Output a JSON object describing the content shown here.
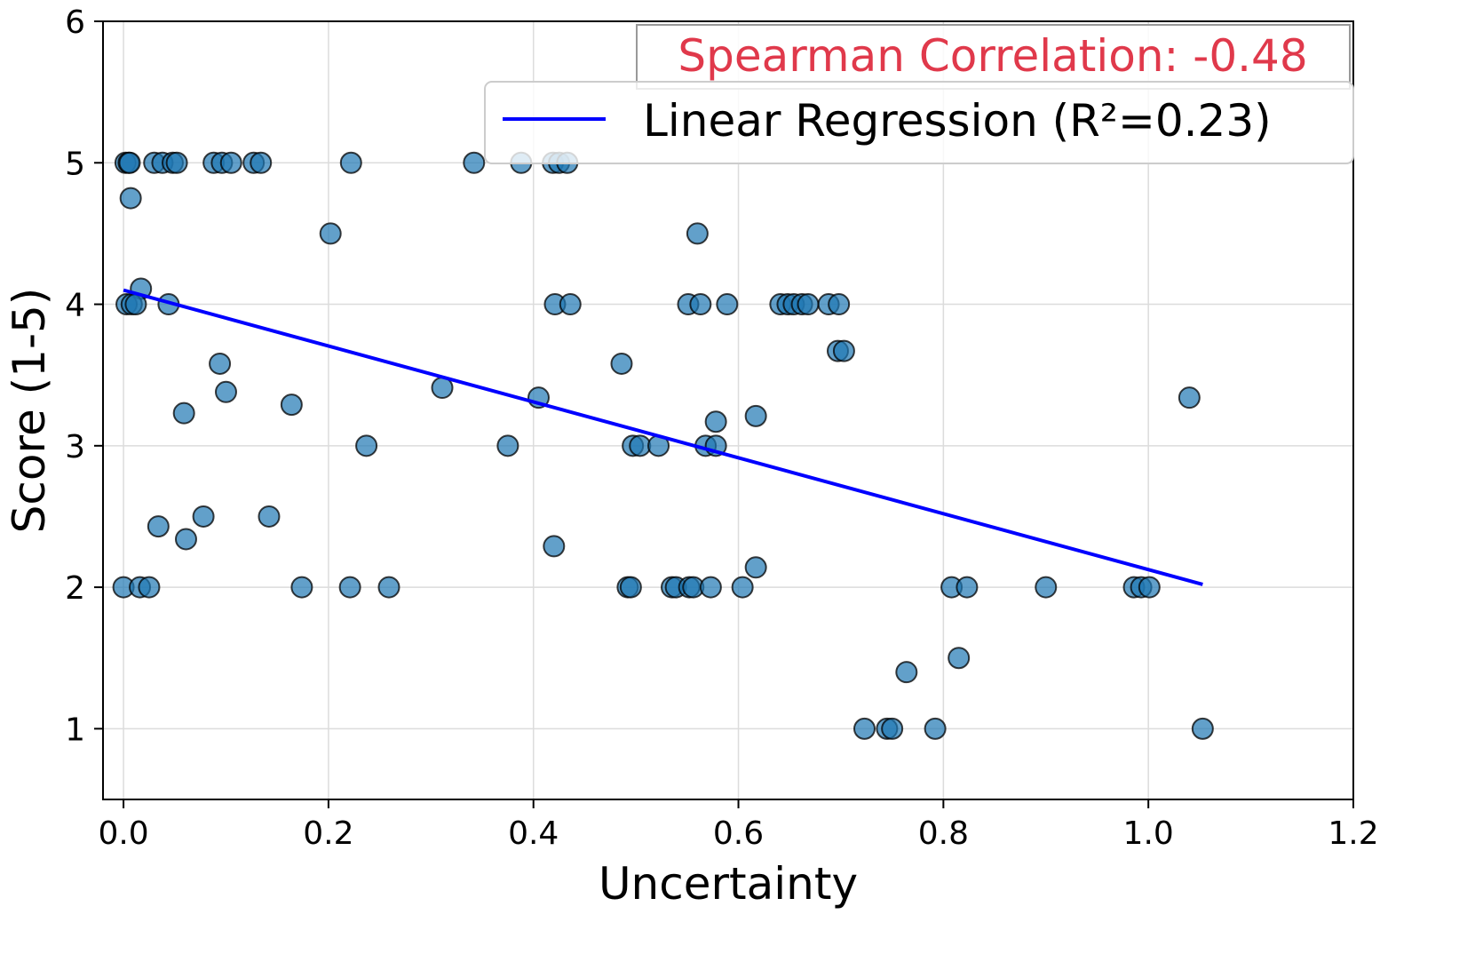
{
  "chart_data": {
    "type": "scatter",
    "title": "",
    "xlabel": "Uncertainty",
    "ylabel": "Score (1-5)",
    "xlim": [
      -0.02,
      1.2
    ],
    "ylim": [
      0.5,
      6.0
    ],
    "xticks": [
      0.0,
      0.2,
      0.4,
      0.6,
      0.8,
      1.0,
      1.2
    ],
    "xtick_labels": [
      "0.0",
      "0.2",
      "0.4",
      "0.6",
      "0.8",
      "1.0",
      "1.2"
    ],
    "yticks": [
      1,
      2,
      3,
      4,
      5,
      6
    ],
    "ytick_labels": [
      "1",
      "2",
      "3",
      "4",
      "5",
      "6"
    ],
    "grid": true,
    "point_color": "#1f77b4",
    "line_color": "#0000ff",
    "annotation": {
      "text": "Spearman Correlation: -0.48",
      "color": "#e0394b"
    },
    "legend": {
      "location": "top-right",
      "entries": [
        "Linear Regression (R²=0.23)"
      ]
    },
    "regression": {
      "x": [
        0.0,
        1.053
      ],
      "y": [
        4.1,
        2.02
      ]
    },
    "series": [
      {
        "name": "data",
        "points": [
          [
            0.002,
            5.0
          ],
          [
            0.005,
            5.0
          ],
          [
            0.006,
            5.0
          ],
          [
            0.03,
            5.0
          ],
          [
            0.038,
            5.0
          ],
          [
            0.048,
            5.0
          ],
          [
            0.052,
            5.0
          ],
          [
            0.088,
            5.0
          ],
          [
            0.096,
            5.0
          ],
          [
            0.105,
            5.0
          ],
          [
            0.127,
            5.0
          ],
          [
            0.134,
            5.0
          ],
          [
            0.222,
            5.0
          ],
          [
            0.342,
            5.0
          ],
          [
            0.388,
            5.0
          ],
          [
            0.419,
            5.0
          ],
          [
            0.425,
            5.0
          ],
          [
            0.433,
            5.0
          ],
          [
            0.007,
            4.75
          ],
          [
            0.202,
            4.5
          ],
          [
            0.56,
            4.5
          ],
          [
            0.017,
            4.11
          ],
          [
            0.003,
            4.0
          ],
          [
            0.008,
            4.0
          ],
          [
            0.012,
            4.0
          ],
          [
            0.044,
            4.0
          ],
          [
            0.421,
            4.0
          ],
          [
            0.436,
            4.0
          ],
          [
            0.551,
            4.0
          ],
          [
            0.563,
            4.0
          ],
          [
            0.589,
            4.0
          ],
          [
            0.641,
            4.0
          ],
          [
            0.648,
            4.0
          ],
          [
            0.654,
            4.0
          ],
          [
            0.662,
            4.0
          ],
          [
            0.668,
            4.0
          ],
          [
            0.688,
            4.0
          ],
          [
            0.698,
            4.0
          ],
          [
            0.697,
            3.67
          ],
          [
            0.703,
            3.67
          ],
          [
            0.094,
            3.58
          ],
          [
            0.486,
            3.58
          ],
          [
            0.1,
            3.38
          ],
          [
            0.311,
            3.41
          ],
          [
            0.405,
            3.34
          ],
          [
            1.04,
            3.34
          ],
          [
            0.164,
            3.29
          ],
          [
            0.059,
            3.23
          ],
          [
            0.617,
            3.21
          ],
          [
            0.578,
            3.17
          ],
          [
            0.237,
            3.0
          ],
          [
            0.375,
            3.0
          ],
          [
            0.497,
            3.0
          ],
          [
            0.504,
            3.0
          ],
          [
            0.522,
            3.0
          ],
          [
            0.568,
            3.0
          ],
          [
            0.578,
            3.0
          ],
          [
            0.078,
            2.5
          ],
          [
            0.142,
            2.5
          ],
          [
            0.034,
            2.43
          ],
          [
            0.061,
            2.34
          ],
          [
            0.42,
            2.29
          ],
          [
            0.617,
            2.14
          ],
          [
            0.0,
            2.0
          ],
          [
            0.016,
            2.0
          ],
          [
            0.025,
            2.0
          ],
          [
            0.174,
            2.0
          ],
          [
            0.221,
            2.0
          ],
          [
            0.259,
            2.0
          ],
          [
            0.492,
            2.0
          ],
          [
            0.495,
            2.0
          ],
          [
            0.535,
            2.0
          ],
          [
            0.539,
            2.0
          ],
          [
            0.552,
            2.0
          ],
          [
            0.556,
            2.0
          ],
          [
            0.573,
            2.0
          ],
          [
            0.604,
            2.0
          ],
          [
            0.808,
            2.0
          ],
          [
            0.823,
            2.0
          ],
          [
            0.9,
            2.0
          ],
          [
            0.986,
            2.0
          ],
          [
            0.993,
            2.0
          ],
          [
            1.001,
            2.0
          ],
          [
            0.815,
            1.5
          ],
          [
            0.764,
            1.4
          ],
          [
            0.723,
            1.0
          ],
          [
            0.745,
            1.0
          ],
          [
            0.75,
            1.0
          ],
          [
            0.792,
            1.0
          ],
          [
            1.053,
            1.0
          ]
        ]
      }
    ]
  }
}
